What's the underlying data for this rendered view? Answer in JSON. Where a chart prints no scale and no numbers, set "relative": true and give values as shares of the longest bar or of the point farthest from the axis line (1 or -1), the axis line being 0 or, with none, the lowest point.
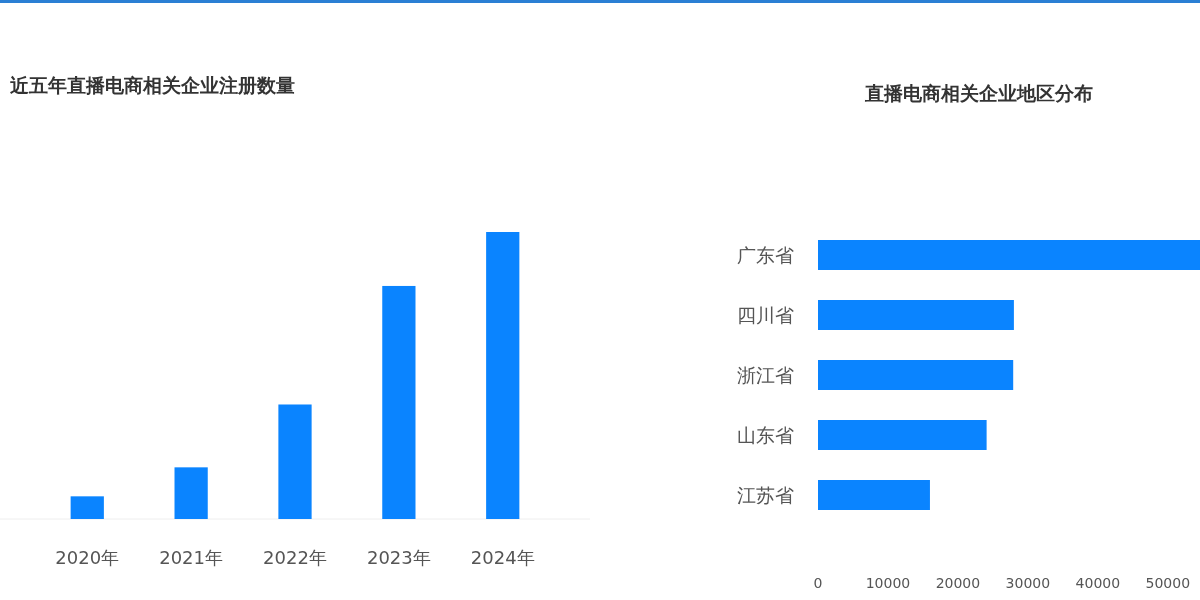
{
  "chart_data": [
    {
      "type": "bar",
      "title": "近五年直播电商相关企业注册数量",
      "categories": [
        "2020年",
        "2021年",
        "2022年",
        "2023年",
        "2024年"
      ],
      "values": [
        0.079,
        0.18,
        0.399,
        0.812,
        1
      ],
      "color": "#0a84ff",
      "relative": true
    },
    {
      "type": "bar",
      "orientation": "horizontal",
      "title": "直播电商相关企业地区分布",
      "categories": [
        "广东省",
        "四川省",
        "浙江省",
        "山东省",
        "江苏省"
      ],
      "values": [
        54600,
        28000,
        27900,
        24100,
        16000
      ],
      "color": "#0a84ff",
      "xlim": [
        0,
        54600
      ],
      "xticks": [
        0,
        10000,
        20000,
        30000,
        40000,
        50000
      ]
    }
  ]
}
